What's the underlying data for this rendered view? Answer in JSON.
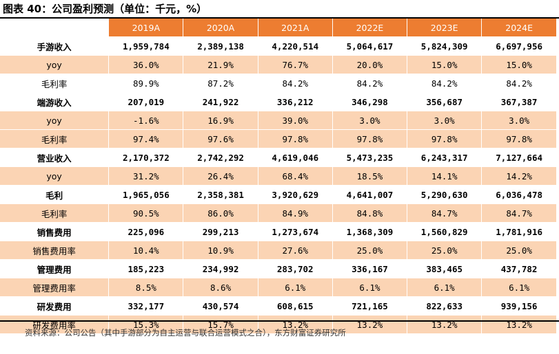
{
  "title": "图表 40：公司盈利预测（单位：千元，%）",
  "columns": [
    "2019A",
    "2020A",
    "2021A",
    "2022E",
    "2023E",
    "2024E"
  ],
  "rows": [
    {
      "label": "手游收入",
      "values": [
        "1,959,784",
        "2,389,138",
        "4,220,514",
        "5,064,617",
        "5,824,309",
        "6,697,956"
      ]
    },
    {
      "label": "yoy",
      "values": [
        "36.0%",
        "21.9%",
        "76.7%",
        "20.0%",
        "15.0%",
        "15.0%"
      ]
    },
    {
      "label": "毛利率",
      "values": [
        "89.9%",
        "87.2%",
        "84.2%",
        "84.2%",
        "84.2%",
        "84.2%"
      ]
    },
    {
      "label": "端游收入",
      "values": [
        "207,019",
        "241,922",
        "336,212",
        "346,298",
        "356,687",
        "367,387"
      ]
    },
    {
      "label": "yoy",
      "values": [
        "-1.6%",
        "16.9%",
        "39.0%",
        "3.0%",
        "3.0%",
        "3.0%"
      ]
    },
    {
      "label": "毛利率",
      "values": [
        "97.4%",
        "97.6%",
        "97.8%",
        "97.8%",
        "97.8%",
        "97.8%"
      ]
    },
    {
      "label": "营业收入",
      "values": [
        "2,170,372",
        "2,742,292",
        "4,619,046",
        "5,473,235",
        "6,243,317",
        "7,127,664"
      ]
    },
    {
      "label": "yoy",
      "values": [
        "31.2%",
        "26.4%",
        "68.4%",
        "18.5%",
        "14.1%",
        "14.2%"
      ]
    },
    {
      "label": "毛利",
      "values": [
        "1,965,056",
        "2,358,381",
        "3,920,629",
        "4,641,007",
        "5,290,630",
        "6,036,478"
      ]
    },
    {
      "label": "毛利率",
      "values": [
        "90.5%",
        "86.0%",
        "84.9%",
        "84.8%",
        "84.7%",
        "84.7%"
      ]
    },
    {
      "label": "销售费用",
      "values": [
        "225,096",
        "299,213",
        "1,273,674",
        "1,368,309",
        "1,560,829",
        "1,781,916"
      ]
    },
    {
      "label": "销售费用率",
      "values": [
        "10.4%",
        "10.9%",
        "27.6%",
        "25.0%",
        "25.0%",
        "25.0%"
      ]
    },
    {
      "label": "管理费用",
      "values": [
        "185,223",
        "234,992",
        "283,702",
        "336,167",
        "383,465",
        "437,782"
      ]
    },
    {
      "label": "管理费用率",
      "values": [
        "8.5%",
        "8.6%",
        "6.1%",
        "6.1%",
        "6.1%",
        "6.1%"
      ]
    },
    {
      "label": "研发费用",
      "values": [
        "332,177",
        "430,574",
        "608,615",
        "721,165",
        "822,633",
        "939,156"
      ]
    },
    {
      "label": "研发费用率",
      "values": [
        "15.3%",
        "15.7%",
        "13.2%",
        "13.2%",
        "13.2%",
        "13.2%"
      ]
    }
  ],
  "source": "资料来源：公司公告（其中手游部分为自主运营与联合运营模式之合），东方财富证券研究所",
  "colors": {
    "header": "#ed7d31",
    "shaded_row": "#fbd4b4"
  }
}
